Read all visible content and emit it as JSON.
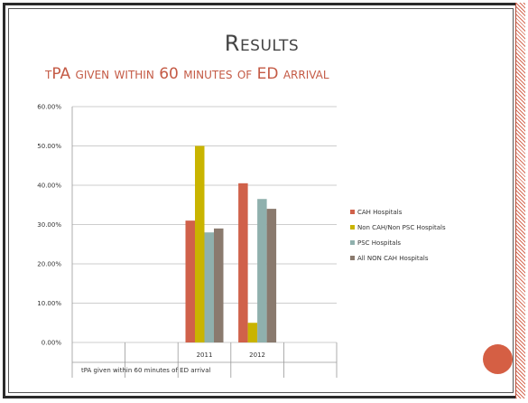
{
  "slide": {
    "title": "Results",
    "subtitle": "tPA given within 60 minutes of ED arrival"
  },
  "colors": {
    "title": "#444444",
    "subtitle": "#c45a45",
    "accent": "#d55f44"
  },
  "chart_data": {
    "type": "bar",
    "title": "",
    "xlabel": "tPA given within 60 minutes of ED arrival",
    "ylabel": "",
    "ylim": [
      0,
      0.6
    ],
    "yticks": [
      "0.00%",
      "10.00%",
      "20.00%",
      "30.00%",
      "40.00%",
      "50.00%",
      "60.00%"
    ],
    "grid": true,
    "legend_position": "right",
    "categories": [
      "",
      "",
      "2011",
      "2012",
      ""
    ],
    "series": [
      {
        "name": "CAH Hospitals",
        "color": "#d0614a",
        "values": [
          null,
          null,
          0.31,
          0.405,
          null
        ]
      },
      {
        "name": "Non CAH/Non PSC Hospitals",
        "color": "#c9b400",
        "values": [
          null,
          null,
          0.5,
          0.05,
          null
        ]
      },
      {
        "name": "PSC Hospitals",
        "color": "#8fb0ad",
        "values": [
          null,
          null,
          0.28,
          0.365,
          null
        ]
      },
      {
        "name": "All NON CAH Hospitals",
        "color": "#8a7a6e",
        "values": [
          null,
          null,
          0.29,
          0.34,
          null
        ]
      }
    ]
  }
}
